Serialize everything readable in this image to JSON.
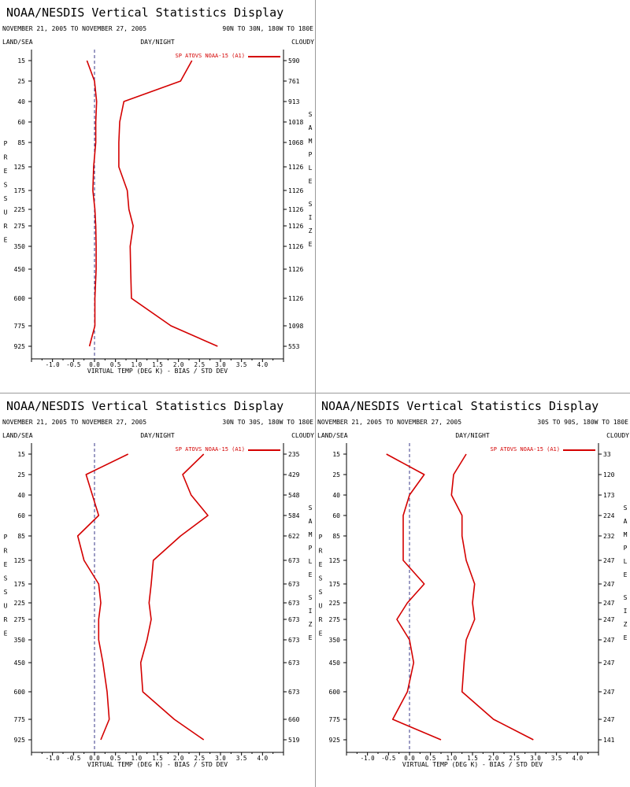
{
  "chart_data": [
    {
      "type": "line",
      "title": "NOAA/NESDIS Vertical Statistics Display",
      "date_range": "NOVEMBER 21, 2005 TO NOVEMBER 27, 2005",
      "region": "90N TO 30N, 180W TO 180E",
      "left_header": "LAND/SEA",
      "center_header": "DAY/NIGHT",
      "right_header": "CLOUDY",
      "ylabel": "PRESSURE",
      "right_axis_label": "SAMPLE SIZE",
      "xlabel": "VIRTUAL TEMP (DEG K) - BIAS / STD DEV",
      "xlim": [
        -1.5,
        4.5
      ],
      "xticks": [
        "-1.0",
        "-0.5",
        "0.0",
        "0.5",
        "1.0",
        "1.5",
        "2.0",
        "2.5",
        "3.0",
        "3.5",
        "4.0"
      ],
      "pressure_levels": [
        "15",
        "25",
        "40",
        "60",
        "85",
        "125",
        "175",
        "225",
        "275",
        "350",
        "450",
        "600",
        "775",
        "925"
      ],
      "sample_size": [
        "590",
        "761",
        "913",
        "1018",
        "1068",
        "1126",
        "1126",
        "1126",
        "1126",
        "1126",
        "1126",
        "1126",
        "1098",
        "553"
      ],
      "legend": "SP ATOVS NOAA-15 (A1)",
      "grid": false,
      "series": [
        {
          "role": "bias",
          "values": [
            -0.18,
            0.0,
            0.05,
            0.03,
            0.03,
            -0.02,
            -0.04,
            0.01,
            0.03,
            0.04,
            0.04,
            0.01,
            0.01,
            -0.12
          ]
        },
        {
          "role": "std_dev",
          "values": [
            2.32,
            2.05,
            0.7,
            0.6,
            0.58,
            0.58,
            0.78,
            0.82,
            0.92,
            0.85,
            0.86,
            0.88,
            1.82,
            2.93
          ]
        }
      ]
    },
    {
      "type": "line",
      "title": "NOAA/NESDIS Vertical Statistics Display",
      "date_range": "NOVEMBER 21, 2005 TO NOVEMBER 27, 2005",
      "region": "30N TO 30S, 180W TO 180E",
      "left_header": "LAND/SEA",
      "center_header": "DAY/NIGHT",
      "right_header": "CLOUDY",
      "ylabel": "PRESSURE",
      "right_axis_label": "SAMPLE SIZE",
      "xlabel": "VIRTUAL TEMP (DEG K) - BIAS / STD DEV",
      "xlim": [
        -1.5,
        4.5
      ],
      "xticks": [
        "-1.0",
        "-0.5",
        "0.0",
        "0.5",
        "1.0",
        "1.5",
        "2.0",
        "2.5",
        "3.0",
        "3.5",
        "4.0"
      ],
      "pressure_levels": [
        "15",
        "25",
        "40",
        "60",
        "85",
        "125",
        "175",
        "225",
        "275",
        "350",
        "450",
        "600",
        "775",
        "925"
      ],
      "sample_size": [
        "235",
        "429",
        "548",
        "584",
        "622",
        "673",
        "673",
        "673",
        "673",
        "673",
        "673",
        "673",
        "660",
        "519"
      ],
      "legend": "SP ATOVS NOAA-15 (A1)",
      "grid": false,
      "series": [
        {
          "role": "bias",
          "values": [
            0.8,
            -0.2,
            -0.05,
            0.1,
            -0.4,
            -0.25,
            0.1,
            0.15,
            0.1,
            0.1,
            0.2,
            0.3,
            0.35,
            0.15
          ]
        },
        {
          "role": "std_dev",
          "values": [
            2.6,
            2.1,
            2.3,
            2.7,
            2.05,
            1.4,
            1.35,
            1.3,
            1.35,
            1.25,
            1.1,
            1.15,
            1.9,
            2.6
          ]
        }
      ]
    },
    {
      "type": "line",
      "title": "NOAA/NESDIS Vertical Statistics Display",
      "date_range": "NOVEMBER 21, 2005 TO NOVEMBER 27, 2005",
      "region": "30S TO 90S, 180W TO 180E",
      "left_header": "LAND/SEA",
      "center_header": "DAY/NIGHT",
      "right_header": "CLOUDY",
      "ylabel": "PRESSURE",
      "right_axis_label": "SAMPLE SIZE",
      "xlabel": "VIRTUAL TEMP (DEG K) - BIAS / STD DEV",
      "xlim": [
        -1.5,
        4.5
      ],
      "xticks": [
        "-1.0",
        "-0.5",
        "0.0",
        "0.5",
        "1.0",
        "1.5",
        "2.0",
        "2.5",
        "3.0",
        "3.5",
        "4.0"
      ],
      "pressure_levels": [
        "15",
        "25",
        "40",
        "60",
        "85",
        "125",
        "175",
        "225",
        "275",
        "350",
        "450",
        "600",
        "775",
        "925"
      ],
      "sample_size": [
        "33",
        "120",
        "173",
        "224",
        "232",
        "247",
        "247",
        "247",
        "247",
        "247",
        "247",
        "247",
        "247",
        "141"
      ],
      "legend": "SP ATOVS NOAA-15 (A1)",
      "grid": false,
      "series": [
        {
          "role": "bias",
          "values": [
            -0.55,
            0.35,
            0.0,
            -0.15,
            -0.15,
            -0.15,
            0.35,
            -0.05,
            -0.3,
            0.0,
            0.1,
            -0.05,
            -0.4,
            0.75
          ]
        },
        {
          "role": "std_dev",
          "values": [
            1.35,
            1.05,
            1.0,
            1.25,
            1.25,
            1.35,
            1.55,
            1.5,
            1.55,
            1.35,
            1.3,
            1.25,
            2.0,
            2.95
          ]
        }
      ]
    }
  ]
}
